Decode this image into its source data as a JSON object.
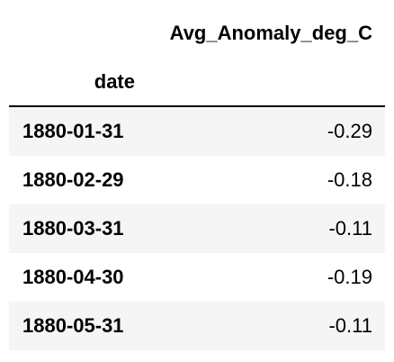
{
  "chart_data": {
    "type": "table",
    "columns": [
      "Avg_Anomaly_deg_C"
    ],
    "index_name": "date",
    "rows": [
      {
        "date": "1880-01-31",
        "value": "-0.29"
      },
      {
        "date": "1880-02-29",
        "value": "-0.18"
      },
      {
        "date": "1880-03-31",
        "value": "-0.11"
      },
      {
        "date": "1880-04-30",
        "value": "-0.19"
      },
      {
        "date": "1880-05-31",
        "value": "-0.11"
      }
    ]
  },
  "colors": {
    "stripe": "#f5f5f5",
    "rule": "#000000"
  }
}
